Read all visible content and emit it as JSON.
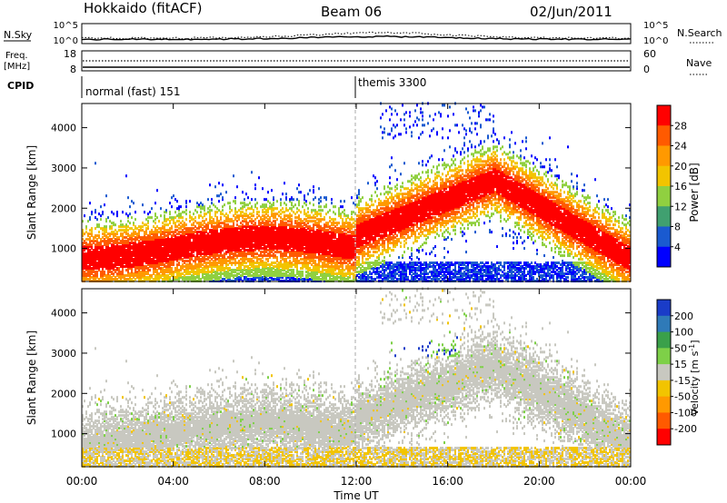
{
  "header": {
    "station": "Hokkaido (fitACF)",
    "beam": "Beam 06",
    "date": "02/Jun/2011"
  },
  "top_panels": {
    "nsky_label": "N.Sky",
    "nsky_ticks": [
      "10^5",
      "10^0"
    ],
    "nsearch_label": "N.Search",
    "nsearch_ticks": [
      "10^5",
      "10^0"
    ],
    "freq_label_1": "Freq.",
    "freq_label_2": "[MHz]",
    "freq_ticks": [
      "18",
      "8"
    ],
    "nave_label": "Nave",
    "nave_ticks": [
      "60",
      "0"
    ],
    "cpid_label": "CPID",
    "cpid_modes": [
      {
        "label": "normal (fast) 151",
        "start_hour": 0
      },
      {
        "label": "themis 3300",
        "start_hour": 12
      }
    ]
  },
  "time_axis": {
    "title": "Time UT",
    "ticks": [
      "00:00",
      "04:00",
      "08:00",
      "12:00",
      "16:00",
      "20:00",
      "00:00"
    ],
    "range_hours": [
      0,
      24
    ]
  },
  "chart_data": [
    {
      "type": "heatmap",
      "title": "",
      "xlabel": "Time UT",
      "ylabel": "Slant Range [km]",
      "xlim": [
        0,
        24
      ],
      "ylim": [
        180,
        4600
      ],
      "yticks": [
        "1000",
        "2000",
        "3000",
        "4000"
      ],
      "ytick_values": [
        1000,
        2000,
        3000,
        4000
      ],
      "colorbar": {
        "label": "Power [dB]",
        "ticks": [
          "28",
          "24",
          "20",
          "16",
          "12",
          "8",
          "4"
        ],
        "colors": [
          "#ff0000",
          "#ff5a00",
          "#ff9900",
          "#f2c400",
          "#90d040",
          "#40a070",
          "#1a5ad0",
          "#0000ff"
        ]
      }
    },
    {
      "type": "heatmap",
      "title": "",
      "xlabel": "Time UT",
      "ylabel": "Slant Range [km]",
      "xlim": [
        0,
        24
      ],
      "ylim": [
        180,
        4600
      ],
      "yticks": [
        "1000",
        "2000",
        "3000",
        "4000"
      ],
      "ytick_values": [
        1000,
        2000,
        3000,
        4000
      ],
      "colorbar": {
        "label": "Velocity [m s^-1]",
        "ticks": [
          "200",
          "100",
          "50",
          "15",
          "-15",
          "-50",
          "-100",
          "-200"
        ],
        "colors": [
          "#1a3cc8",
          "#2f7ab8",
          "#3aa04a",
          "#7ed048",
          "#c8c8c0",
          "#f2c400",
          "#ff9900",
          "#ff5a00",
          "#ff0000"
        ]
      }
    }
  ]
}
